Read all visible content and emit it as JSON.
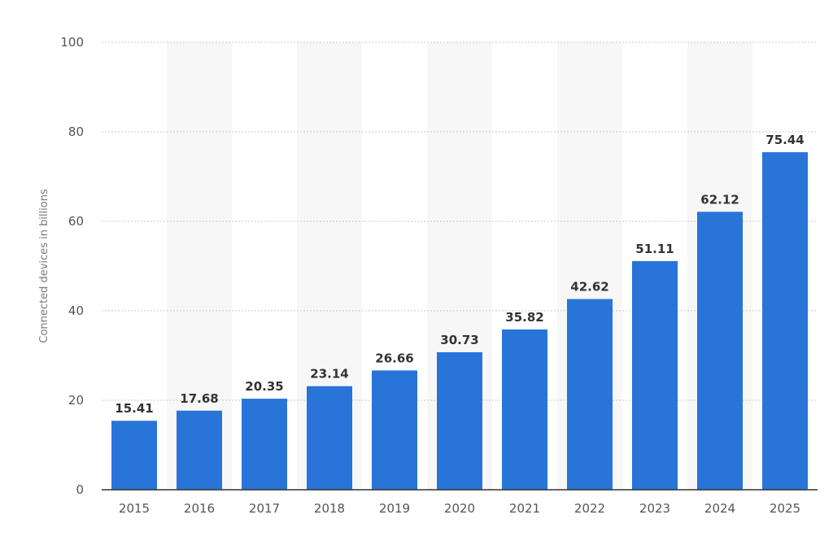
{
  "chart_data": {
    "type": "bar",
    "title": "",
    "xlabel": "",
    "ylabel": "Connected devices in billions",
    "categories": [
      "2015",
      "2016",
      "2017",
      "2018",
      "2019",
      "2020",
      "2021",
      "2022",
      "2023",
      "2024",
      "2025"
    ],
    "values": [
      15.41,
      17.68,
      20.35,
      23.14,
      26.66,
      30.73,
      35.82,
      42.62,
      51.11,
      62.12,
      75.44
    ],
    "value_labels": [
      "15.41",
      "17.68",
      "20.35",
      "23.14",
      "26.66",
      "30.73",
      "35.82",
      "42.62",
      "51.11",
      "62.12",
      "75.44"
    ],
    "ylim": [
      0,
      100
    ],
    "yticks": [
      "0",
      "20",
      "40",
      "60",
      "80",
      "100"
    ],
    "grid": true,
    "bar_color": "#2874d9",
    "band_color": "#f7f7f7",
    "gridline_color": "#c8c8c8",
    "legend": "none"
  }
}
